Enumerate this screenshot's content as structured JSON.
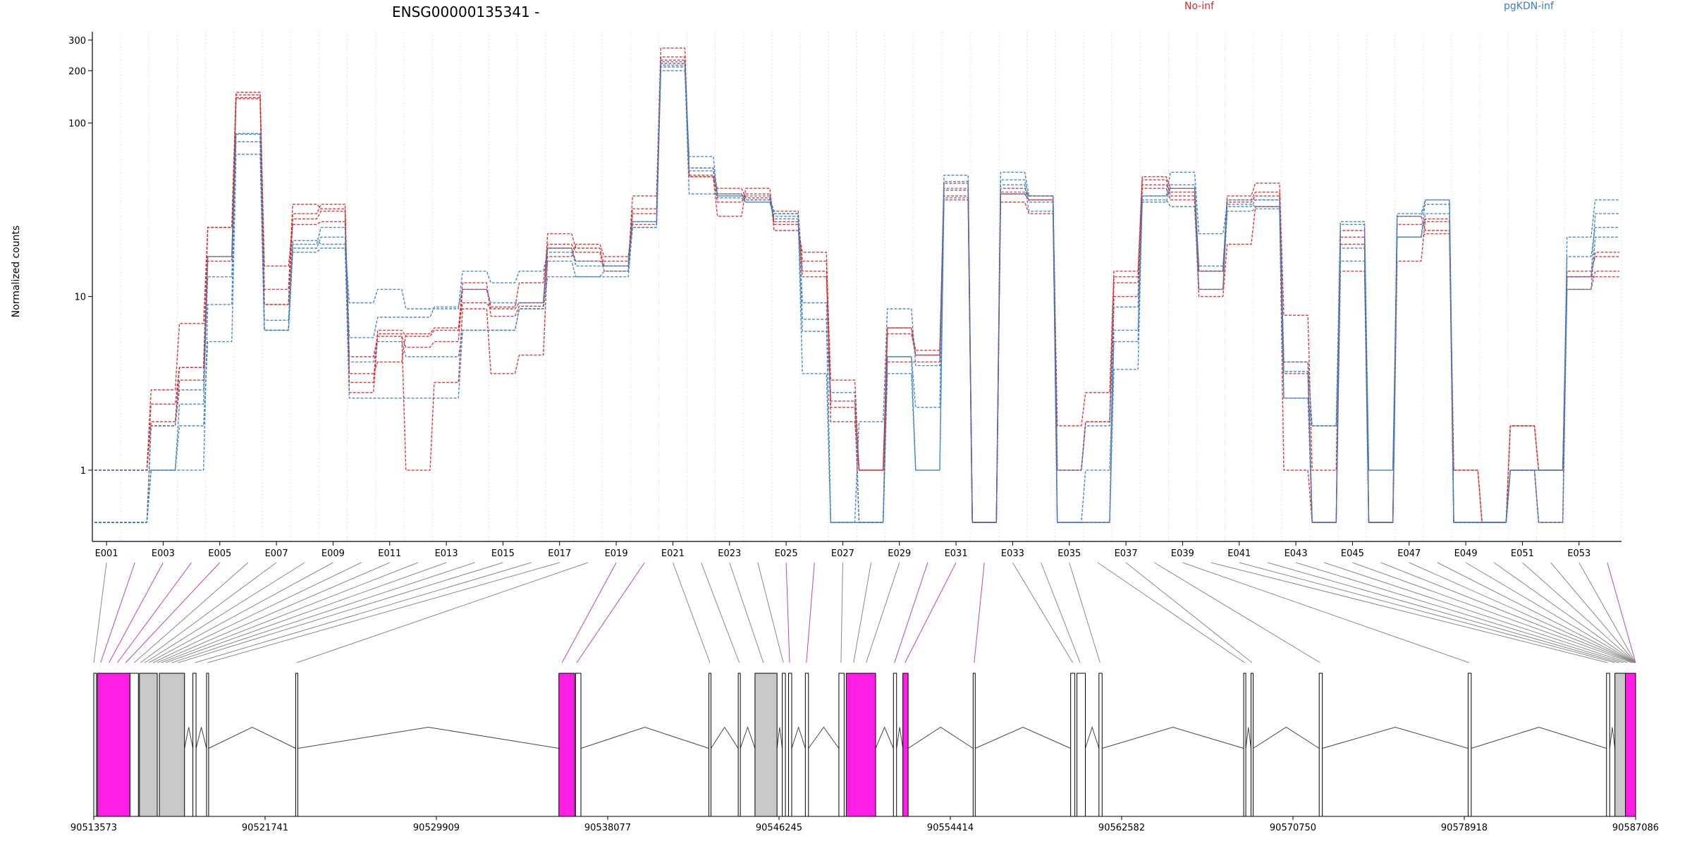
{
  "title": "ENSG00000135341 -",
  "legend": [
    {
      "name": "No-inf",
      "color": "#d62728"
    },
    {
      "name": "pgKDN-inf",
      "color": "#3a7ebf"
    }
  ],
  "chart_data": {
    "type": "line",
    "yscale": "log",
    "ylabel": "Normalized counts",
    "ylim": [
      0.5,
      320
    ],
    "yticks": [
      1,
      10,
      100,
      200,
      300
    ],
    "exon_tick_labels": [
      "E001",
      "E003",
      "E005",
      "E007",
      "E009",
      "E011",
      "E013",
      "E015",
      "E017",
      "E019",
      "E021",
      "E023",
      "E025",
      "E027",
      "E029",
      "E031",
      "E033",
      "E035",
      "E037",
      "E039",
      "E041",
      "E043",
      "E045",
      "E047",
      "E049",
      "E051",
      "E053"
    ],
    "genomic_tick_labels": [
      "90513573",
      "90521741",
      "90529909",
      "90538077",
      "90546245",
      "90554414",
      "90562582",
      "90570750",
      "90578918",
      "90587086"
    ],
    "genomic_range": [
      90513573,
      90587086
    ],
    "exons": [
      "E001",
      "E002",
      "E003",
      "E004",
      "E005",
      "E006",
      "E007",
      "E008",
      "E009",
      "E010",
      "E011",
      "E012",
      "E013",
      "E014",
      "E015",
      "E016",
      "E017",
      "E018",
      "E019",
      "E020",
      "E021",
      "E022",
      "E023",
      "E024",
      "E025",
      "E026",
      "E027",
      "E028",
      "E029",
      "E030",
      "E031",
      "E032",
      "E033",
      "E034",
      "E035",
      "E036",
      "E037",
      "E038",
      "E039",
      "E040",
      "E041",
      "E042",
      "E043",
      "E044",
      "E045",
      "E046",
      "E047",
      "E048",
      "E049",
      "E050",
      "E051",
      "E052",
      "E053",
      "E054"
    ],
    "series": [
      {
        "group": "No-inf",
        "color": "#d62728",
        "values": [
          1,
          1,
          2.9,
          7,
          25,
          150,
          9,
          28,
          31,
          3.2,
          6.4,
          5.9,
          6.4,
          12,
          7.7,
          8.8,
          23,
          19,
          15,
          38,
          270,
          49,
          42,
          37,
          27,
          16,
          3.3,
          1,
          6.6,
          4.6,
          45,
          0.5,
          39,
          36,
          1.8,
          2.8,
          14,
          49,
          42,
          14,
          38,
          45,
          7.8,
          1,
          24,
          0.5,
          29,
          24,
          1,
          0.5,
          1.8,
          1,
          13,
          18
        ]
      },
      {
        "group": "No-inf",
        "color": "#d62728",
        "values": [
          1,
          1,
          1.9,
          3.9,
          16,
          145,
          15,
          26,
          27,
          4.5,
          5.9,
          5.1,
          5.5,
          11,
          8.7,
          12,
          20,
          18,
          14,
          32,
          240,
          55,
          39,
          36,
          31,
          14,
          2.3,
          0.5,
          6.6,
          4.9,
          41,
          0.5,
          42,
          38,
          1,
          1.9,
          13,
          44,
          40,
          11,
          36,
          40,
          4.2,
          0.5,
          22,
          0.5,
          16,
          28,
          0.5,
          0.5,
          1,
          0.5,
          14,
          17
        ]
      },
      {
        "group": "No-inf",
        "color": "#d62728",
        "values": [
          0.5,
          0.5,
          1.8,
          3.3,
          17,
          140,
          9,
          30,
          34,
          2.8,
          6.1,
          1,
          3.2,
          8.5,
          3.6,
          4.6,
          17,
          20,
          17,
          26,
          220,
          49,
          29,
          42,
          24,
          18,
          1.9,
          1,
          4.2,
          4.2,
          36,
          0.5,
          35,
          30,
          0.5,
          0.5,
          10,
          42,
          36,
          10,
          20,
          33,
          1,
          0.5,
          14,
          0.5,
          22,
          23,
          0.5,
          0.5,
          1,
          1,
          11,
          14
        ]
      },
      {
        "group": "No-inf",
        "color": "#d62728",
        "values": [
          1,
          1,
          2.4,
          3.9,
          25,
          138,
          11,
          34,
          32,
          3.6,
          4.2,
          6.1,
          6.6,
          9.2,
          8.5,
          9.2,
          19,
          16,
          16,
          30,
          230,
          50,
          35,
          39,
          26,
          13,
          2.5,
          1,
          6.1,
          4.6,
          38,
          0.5,
          39,
          36,
          1,
          1.9,
          12,
          47,
          38,
          14,
          35,
          38,
          3.6,
          0.5,
          20,
          0.5,
          26,
          27,
          1,
          0.5,
          1.8,
          1,
          13,
          13
        ]
      },
      {
        "group": "pgKDN-inf",
        "color": "#3a7ebf",
        "values": [
          0.5,
          0.5,
          1,
          1.8,
          5.5,
          66,
          6.4,
          18,
          19,
          2.6,
          2.6,
          2.6,
          2.6,
          6.4,
          6.4,
          8.5,
          13,
          13,
          13,
          25,
          200,
          39,
          39,
          35,
          28,
          3.6,
          0.5,
          0.5,
          4.5,
          1,
          42,
          0.5,
          40,
          38,
          0.5,
          1,
          5.5,
          36,
          33,
          11,
          31,
          32,
          2.6,
          0.5,
          26,
          0.5,
          29,
          34,
          0.5,
          0.5,
          1,
          0.5,
          11,
          22
        ]
      },
      {
        "group": "pgKDN-inf",
        "color": "#3a7ebf",
        "values": [
          0.5,
          0.5,
          1.8,
          2.9,
          13,
          78,
          6.4,
          21,
          20,
          9.2,
          11,
          8.5,
          8.5,
          14,
          12,
          14,
          18,
          16,
          15,
          27,
          210,
          64,
          38,
          38,
          30,
          7.4,
          0.5,
          1.9,
          8.5,
          4,
          50,
          0.5,
          52,
          38,
          1,
          1.8,
          8.7,
          38,
          52,
          23,
          34,
          33,
          4.2,
          1.8,
          27,
          1,
          22,
          36,
          0.5,
          0.5,
          1,
          0.5,
          22,
          36
        ]
      },
      {
        "group": "pgKDN-inf",
        "color": "#3a7ebf",
        "values": [
          0.5,
          0.5,
          1,
          1,
          9,
          87,
          6.4,
          19,
          22,
          4.2,
          5.5,
          4.5,
          4.5,
          6.4,
          6.4,
          8.5,
          16,
          13,
          14,
          25,
          225,
          53,
          38,
          36,
          30,
          9.2,
          0.5,
          0.5,
          3.6,
          1,
          37,
          0.5,
          44,
          31,
          0.5,
          0.5,
          3.8,
          38,
          42,
          14,
          36,
          36,
          3.7,
          0.5,
          19,
          1,
          22,
          30,
          0.5,
          0.5,
          1,
          1,
          13,
          30
        ]
      },
      {
        "group": "pgKDN-inf",
        "color": "#3a7ebf",
        "values": [
          1,
          1,
          1,
          2.4,
          17,
          86,
          7.3,
          20,
          25,
          5.8,
          7.6,
          7.6,
          8.7,
          11,
          9.2,
          9.2,
          19,
          15,
          15,
          27,
          215,
          55,
          37,
          35,
          29,
          6.3,
          2.8,
          0.5,
          4.5,
          2.3,
          46,
          0.5,
          47,
          35,
          0.5,
          0.5,
          6.4,
          35,
          44,
          15,
          33,
          36,
          2.6,
          1.8,
          16,
          0.5,
          30,
          36,
          0.5,
          0.5,
          1,
          1,
          17,
          25
        ]
      }
    ]
  }
}
